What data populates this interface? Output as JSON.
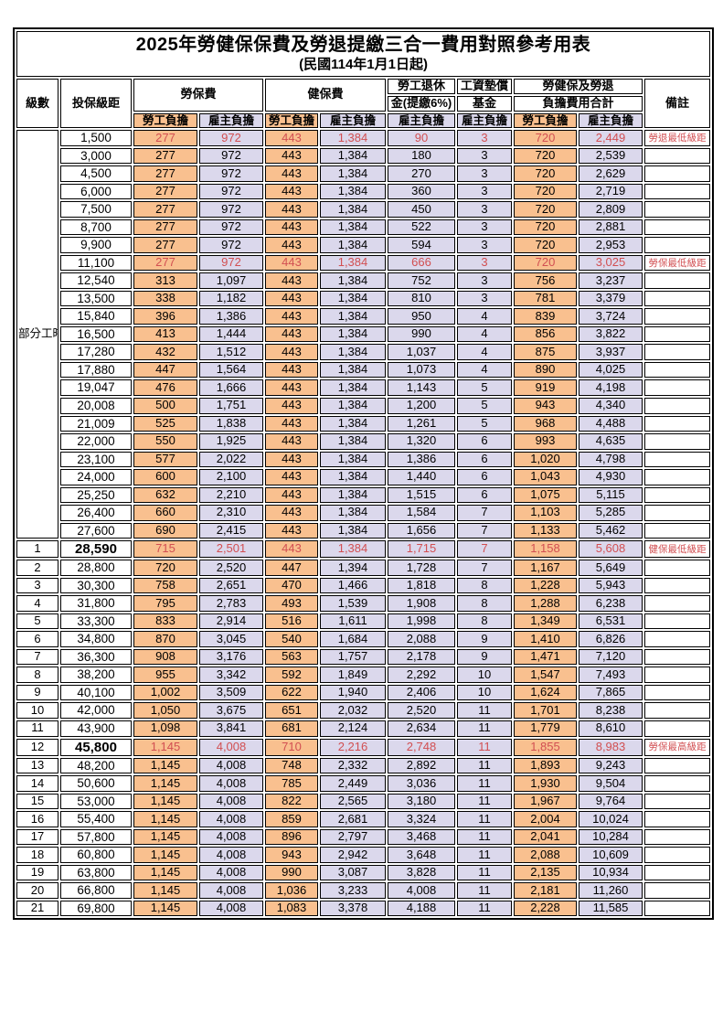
{
  "title": "2025年勞健保保費及勞退提繳三合一費用對照參考用表",
  "subtitle": "(民國114年1月1日起)",
  "part_time_label": "部分工時",
  "part_time_rowspan": 23,
  "header": {
    "level": "級數",
    "bracket": "投保級距",
    "labor_ins": "勞保費",
    "health_ins": "健保費",
    "pension_l1": "勞工退休",
    "pension_l2": "金(提繳6%)",
    "fund_l1": "工資墊償",
    "fund_l2": "基金",
    "total_l1": "勞健保及勞退",
    "total_l2": "負擔費用合計",
    "note": "備註",
    "employee": "勞工負擔",
    "employer": "雇主負擔"
  },
  "colors": {
    "employee_bg": "#f9c08f",
    "employer_bg": "#dbd8ec",
    "highlight_red": "#d24f52",
    "border": "#000000"
  },
  "rows": [
    {
      "bracket": "1,500",
      "li_employee": "277",
      "li_employer": "972",
      "hi_employee": "443",
      "hi_employer": "1,384",
      "pension_employer": "90",
      "fund_employer": "3",
      "total_employee": "720",
      "total_employer": "2,449",
      "note": "勞退最低級距",
      "red": true,
      "bold": false
    },
    {
      "bracket": "3,000",
      "li_employee": "277",
      "li_employer": "972",
      "hi_employee": "443",
      "hi_employer": "1,384",
      "pension_employer": "180",
      "fund_employer": "3",
      "total_employee": "720",
      "total_employer": "2,539",
      "note": "",
      "red": false,
      "bold": false
    },
    {
      "bracket": "4,500",
      "li_employee": "277",
      "li_employer": "972",
      "hi_employee": "443",
      "hi_employer": "1,384",
      "pension_employer": "270",
      "fund_employer": "3",
      "total_employee": "720",
      "total_employer": "2,629",
      "note": "",
      "red": false,
      "bold": false
    },
    {
      "bracket": "6,000",
      "li_employee": "277",
      "li_employer": "972",
      "hi_employee": "443",
      "hi_employer": "1,384",
      "pension_employer": "360",
      "fund_employer": "3",
      "total_employee": "720",
      "total_employer": "2,719",
      "note": "",
      "red": false,
      "bold": false
    },
    {
      "bracket": "7,500",
      "li_employee": "277",
      "li_employer": "972",
      "hi_employee": "443",
      "hi_employer": "1,384",
      "pension_employer": "450",
      "fund_employer": "3",
      "total_employee": "720",
      "total_employer": "2,809",
      "note": "",
      "red": false,
      "bold": false
    },
    {
      "bracket": "8,700",
      "li_employee": "277",
      "li_employer": "972",
      "hi_employee": "443",
      "hi_employer": "1,384",
      "pension_employer": "522",
      "fund_employer": "3",
      "total_employee": "720",
      "total_employer": "2,881",
      "note": "",
      "red": false,
      "bold": false
    },
    {
      "bracket": "9,900",
      "li_employee": "277",
      "li_employer": "972",
      "hi_employee": "443",
      "hi_employer": "1,384",
      "pension_employer": "594",
      "fund_employer": "3",
      "total_employee": "720",
      "total_employer": "2,953",
      "note": "",
      "red": false,
      "bold": false
    },
    {
      "bracket": "11,100",
      "li_employee": "277",
      "li_employer": "972",
      "hi_employee": "443",
      "hi_employer": "1,384",
      "pension_employer": "666",
      "fund_employer": "3",
      "total_employee": "720",
      "total_employer": "3,025",
      "note": "勞保最低級距",
      "red": true,
      "bold": false
    },
    {
      "bracket": "12,540",
      "li_employee": "313",
      "li_employer": "1,097",
      "hi_employee": "443",
      "hi_employer": "1,384",
      "pension_employer": "752",
      "fund_employer": "3",
      "total_employee": "756",
      "total_employer": "3,237",
      "note": "",
      "red": false,
      "bold": false
    },
    {
      "bracket": "13,500",
      "li_employee": "338",
      "li_employer": "1,182",
      "hi_employee": "443",
      "hi_employer": "1,384",
      "pension_employer": "810",
      "fund_employer": "3",
      "total_employee": "781",
      "total_employer": "3,379",
      "note": "",
      "red": false,
      "bold": false
    },
    {
      "bracket": "15,840",
      "li_employee": "396",
      "li_employer": "1,386",
      "hi_employee": "443",
      "hi_employer": "1,384",
      "pension_employer": "950",
      "fund_employer": "4",
      "total_employee": "839",
      "total_employer": "3,724",
      "note": "",
      "red": false,
      "bold": false
    },
    {
      "bracket": "16,500",
      "li_employee": "413",
      "li_employer": "1,444",
      "hi_employee": "443",
      "hi_employer": "1,384",
      "pension_employer": "990",
      "fund_employer": "4",
      "total_employee": "856",
      "total_employer": "3,822",
      "note": "",
      "red": false,
      "bold": false
    },
    {
      "bracket": "17,280",
      "li_employee": "432",
      "li_employer": "1,512",
      "hi_employee": "443",
      "hi_employer": "1,384",
      "pension_employer": "1,037",
      "fund_employer": "4",
      "total_employee": "875",
      "total_employer": "3,937",
      "note": "",
      "red": false,
      "bold": false
    },
    {
      "bracket": "17,880",
      "li_employee": "447",
      "li_employer": "1,564",
      "hi_employee": "443",
      "hi_employer": "1,384",
      "pension_employer": "1,073",
      "fund_employer": "4",
      "total_employee": "890",
      "total_employer": "4,025",
      "note": "",
      "red": false,
      "bold": false
    },
    {
      "bracket": "19,047",
      "li_employee": "476",
      "li_employer": "1,666",
      "hi_employee": "443",
      "hi_employer": "1,384",
      "pension_employer": "1,143",
      "fund_employer": "5",
      "total_employee": "919",
      "total_employer": "4,198",
      "note": "",
      "red": false,
      "bold": false
    },
    {
      "bracket": "20,008",
      "li_employee": "500",
      "li_employer": "1,751",
      "hi_employee": "443",
      "hi_employer": "1,384",
      "pension_employer": "1,200",
      "fund_employer": "5",
      "total_employee": "943",
      "total_employer": "4,340",
      "note": "",
      "red": false,
      "bold": false
    },
    {
      "bracket": "21,009",
      "li_employee": "525",
      "li_employer": "1,838",
      "hi_employee": "443",
      "hi_employer": "1,384",
      "pension_employer": "1,261",
      "fund_employer": "5",
      "total_employee": "968",
      "total_employer": "4,488",
      "note": "",
      "red": false,
      "bold": false
    },
    {
      "bracket": "22,000",
      "li_employee": "550",
      "li_employer": "1,925",
      "hi_employee": "443",
      "hi_employer": "1,384",
      "pension_employer": "1,320",
      "fund_employer": "6",
      "total_employee": "993",
      "total_employer": "4,635",
      "note": "",
      "red": false,
      "bold": false
    },
    {
      "bracket": "23,100",
      "li_employee": "577",
      "li_employer": "2,022",
      "hi_employee": "443",
      "hi_employer": "1,384",
      "pension_employer": "1,386",
      "fund_employer": "6",
      "total_employee": "1,020",
      "total_employer": "4,798",
      "note": "",
      "red": false,
      "bold": false
    },
    {
      "bracket": "24,000",
      "li_employee": "600",
      "li_employer": "2,100",
      "hi_employee": "443",
      "hi_employer": "1,384",
      "pension_employer": "1,440",
      "fund_employer": "6",
      "total_employee": "1,043",
      "total_employer": "4,930",
      "note": "",
      "red": false,
      "bold": false
    },
    {
      "bracket": "25,250",
      "li_employee": "632",
      "li_employer": "2,210",
      "hi_employee": "443",
      "hi_employer": "1,384",
      "pension_employer": "1,515",
      "fund_employer": "6",
      "total_employee": "1,075",
      "total_employer": "5,115",
      "note": "",
      "red": false,
      "bold": false
    },
    {
      "bracket": "26,400",
      "li_employee": "660",
      "li_employer": "2,310",
      "hi_employee": "443",
      "hi_employer": "1,384",
      "pension_employer": "1,584",
      "fund_employer": "7",
      "total_employee": "1,103",
      "total_employer": "5,285",
      "note": "",
      "red": false,
      "bold": false
    },
    {
      "bracket": "27,600",
      "li_employee": "690",
      "li_employer": "2,415",
      "hi_employee": "443",
      "hi_employer": "1,384",
      "pension_employer": "1,656",
      "fund_employer": "7",
      "total_employee": "1,133",
      "total_employer": "5,462",
      "note": "",
      "red": false,
      "bold": false
    },
    {
      "level": "1",
      "bracket": "28,590",
      "li_employee": "715",
      "li_employer": "2,501",
      "hi_employee": "443",
      "hi_employer": "1,384",
      "pension_employer": "1,715",
      "fund_employer": "7",
      "total_employee": "1,158",
      "total_employer": "5,608",
      "note": "健保最低級距",
      "red": true,
      "bold": true
    },
    {
      "level": "2",
      "bracket": "28,800",
      "li_employee": "720",
      "li_employer": "2,520",
      "hi_employee": "447",
      "hi_employer": "1,394",
      "pension_employer": "1,728",
      "fund_employer": "7",
      "total_employee": "1,167",
      "total_employer": "5,649",
      "note": "",
      "red": false,
      "bold": false
    },
    {
      "level": "3",
      "bracket": "30,300",
      "li_employee": "758",
      "li_employer": "2,651",
      "hi_employee": "470",
      "hi_employer": "1,466",
      "pension_employer": "1,818",
      "fund_employer": "8",
      "total_employee": "1,228",
      "total_employer": "5,943",
      "note": "",
      "red": false,
      "bold": false
    },
    {
      "level": "4",
      "bracket": "31,800",
      "li_employee": "795",
      "li_employer": "2,783",
      "hi_employee": "493",
      "hi_employer": "1,539",
      "pension_employer": "1,908",
      "fund_employer": "8",
      "total_employee": "1,288",
      "total_employer": "6,238",
      "note": "",
      "red": false,
      "bold": false
    },
    {
      "level": "5",
      "bracket": "33,300",
      "li_employee": "833",
      "li_employer": "2,914",
      "hi_employee": "516",
      "hi_employer": "1,611",
      "pension_employer": "1,998",
      "fund_employer": "8",
      "total_employee": "1,349",
      "total_employer": "6,531",
      "note": "",
      "red": false,
      "bold": false
    },
    {
      "level": "6",
      "bracket": "34,800",
      "li_employee": "870",
      "li_employer": "3,045",
      "hi_employee": "540",
      "hi_employer": "1,684",
      "pension_employer": "2,088",
      "fund_employer": "9",
      "total_employee": "1,410",
      "total_employer": "6,826",
      "note": "",
      "red": false,
      "bold": false
    },
    {
      "level": "7",
      "bracket": "36,300",
      "li_employee": "908",
      "li_employer": "3,176",
      "hi_employee": "563",
      "hi_employer": "1,757",
      "pension_employer": "2,178",
      "fund_employer": "9",
      "total_employee": "1,471",
      "total_employer": "7,120",
      "note": "",
      "red": false,
      "bold": false
    },
    {
      "level": "8",
      "bracket": "38,200",
      "li_employee": "955",
      "li_employer": "3,342",
      "hi_employee": "592",
      "hi_employer": "1,849",
      "pension_employer": "2,292",
      "fund_employer": "10",
      "total_employee": "1,547",
      "total_employer": "7,493",
      "note": "",
      "red": false,
      "bold": false
    },
    {
      "level": "9",
      "bracket": "40,100",
      "li_employee": "1,002",
      "li_employer": "3,509",
      "hi_employee": "622",
      "hi_employer": "1,940",
      "pension_employer": "2,406",
      "fund_employer": "10",
      "total_employee": "1,624",
      "total_employer": "7,865",
      "note": "",
      "red": false,
      "bold": false
    },
    {
      "level": "10",
      "bracket": "42,000",
      "li_employee": "1,050",
      "li_employer": "3,675",
      "hi_employee": "651",
      "hi_employer": "2,032",
      "pension_employer": "2,520",
      "fund_employer": "11",
      "total_employee": "1,701",
      "total_employer": "8,238",
      "note": "",
      "red": false,
      "bold": false
    },
    {
      "level": "11",
      "bracket": "43,900",
      "li_employee": "1,098",
      "li_employer": "3,841",
      "hi_employee": "681",
      "hi_employer": "2,124",
      "pension_employer": "2,634",
      "fund_employer": "11",
      "total_employee": "1,779",
      "total_employer": "8,610",
      "note": "",
      "red": false,
      "bold": false
    },
    {
      "level": "12",
      "bracket": "45,800",
      "li_employee": "1,145",
      "li_employer": "4,008",
      "hi_employee": "710",
      "hi_employer": "2,216",
      "pension_employer": "2,748",
      "fund_employer": "11",
      "total_employee": "1,855",
      "total_employer": "8,983",
      "note": "勞保最高級距",
      "red": true,
      "bold": true
    },
    {
      "level": "13",
      "bracket": "48,200",
      "li_employee": "1,145",
      "li_employer": "4,008",
      "hi_employee": "748",
      "hi_employer": "2,332",
      "pension_employer": "2,892",
      "fund_employer": "11",
      "total_employee": "1,893",
      "total_employer": "9,243",
      "note": "",
      "red": false,
      "bold": false
    },
    {
      "level": "14",
      "bracket": "50,600",
      "li_employee": "1,145",
      "li_employer": "4,008",
      "hi_employee": "785",
      "hi_employer": "2,449",
      "pension_employer": "3,036",
      "fund_employer": "11",
      "total_employee": "1,930",
      "total_employer": "9,504",
      "note": "",
      "red": false,
      "bold": false
    },
    {
      "level": "15",
      "bracket": "53,000",
      "li_employee": "1,145",
      "li_employer": "4,008",
      "hi_employee": "822",
      "hi_employer": "2,565",
      "pension_employer": "3,180",
      "fund_employer": "11",
      "total_employee": "1,967",
      "total_employer": "9,764",
      "note": "",
      "red": false,
      "bold": false
    },
    {
      "level": "16",
      "bracket": "55,400",
      "li_employee": "1,145",
      "li_employer": "4,008",
      "hi_employee": "859",
      "hi_employer": "2,681",
      "pension_employer": "3,324",
      "fund_employer": "11",
      "total_employee": "2,004",
      "total_employer": "10,024",
      "note": "",
      "red": false,
      "bold": false
    },
    {
      "level": "17",
      "bracket": "57,800",
      "li_employee": "1,145",
      "li_employer": "4,008",
      "hi_employee": "896",
      "hi_employer": "2,797",
      "pension_employer": "3,468",
      "fund_employer": "11",
      "total_employee": "2,041",
      "total_employer": "10,284",
      "note": "",
      "red": false,
      "bold": false
    },
    {
      "level": "18",
      "bracket": "60,800",
      "li_employee": "1,145",
      "li_employer": "4,008",
      "hi_employee": "943",
      "hi_employer": "2,942",
      "pension_employer": "3,648",
      "fund_employer": "11",
      "total_employee": "2,088",
      "total_employer": "10,609",
      "note": "",
      "red": false,
      "bold": false
    },
    {
      "level": "19",
      "bracket": "63,800",
      "li_employee": "1,145",
      "li_employer": "4,008",
      "hi_employee": "990",
      "hi_employer": "3,087",
      "pension_employer": "3,828",
      "fund_employer": "11",
      "total_employee": "2,135",
      "total_employer": "10,934",
      "note": "",
      "red": false,
      "bold": false
    },
    {
      "level": "20",
      "bracket": "66,800",
      "li_employee": "1,145",
      "li_employer": "4,008",
      "hi_employee": "1,036",
      "hi_employer": "3,233",
      "pension_employer": "4,008",
      "fund_employer": "11",
      "total_employee": "2,181",
      "total_employer": "11,260",
      "note": "",
      "red": false,
      "bold": false
    },
    {
      "level": "21",
      "bracket": "69,800",
      "li_employee": "1,145",
      "li_employer": "4,008",
      "hi_employee": "1,083",
      "hi_employer": "3,378",
      "pension_employer": "4,188",
      "fund_employer": "11",
      "total_employee": "2,228",
      "total_employer": "11,585",
      "note": "",
      "red": false,
      "bold": false
    }
  ]
}
